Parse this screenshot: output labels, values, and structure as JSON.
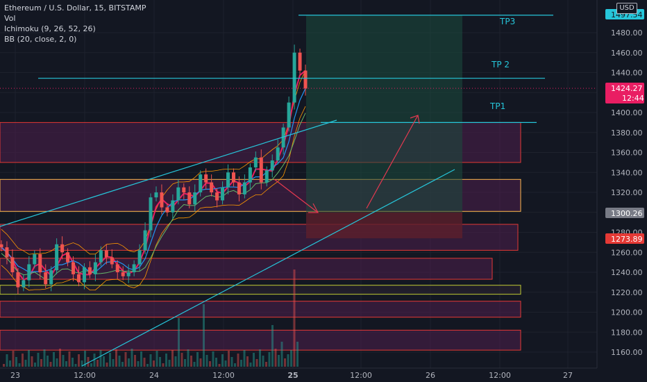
{
  "legend": {
    "symbol": "Ethereum / U.S. Dollar, 15, BITSTAMP",
    "vol": "Vol",
    "ichimoku": "Ichimoku (9, 26, 52, 26)",
    "bb": "BB (20, close, 2, 0)"
  },
  "currency_button": "USD",
  "colors": {
    "background": "#131722",
    "up": "#26a69a",
    "down": "#ef5350",
    "trendline": "#26c6da",
    "zone_fill": "#4a1e4a",
    "zone_border": "#e53935",
    "zone_border_alt": "#ffb74d",
    "zone_border_green": "#c0ca33",
    "target_fill": "#1b4d3e",
    "stop_fill": "#5c1f2c",
    "arrow": "#e53950",
    "grid": "#1e222d"
  },
  "chart_data": {
    "type": "candlestick",
    "y_axis": {
      "min": 1150,
      "max": 1500,
      "ticks": [
        "1480.00",
        "1460.00",
        "1440.00",
        "1420.00",
        "1400.00",
        "1380.00",
        "1360.00",
        "1340.00",
        "1320.00",
        "1300.00",
        "1280.00",
        "1260.00",
        "1240.00",
        "1220.00",
        "1200.00",
        "1180.00",
        "1160.00"
      ]
    },
    "x_axis": {
      "ticks": [
        "23",
        "12:00",
        "24",
        "12:00",
        "25",
        "12:00",
        "26",
        "12:00",
        "27"
      ]
    },
    "price_labels": {
      "top": "1497.54",
      "current": "1424.27",
      "current_time": "12:44",
      "mid": "1300.26",
      "low": "1273.89"
    },
    "annotations": {
      "tp3": "TP3",
      "tp2": "TP 2",
      "tp1": "TP1"
    },
    "levels": {
      "tp3": 1497.5,
      "tp2": 1435,
      "tp1": 1390,
      "current": 1424.27
    },
    "position": {
      "entry": 1300,
      "target": 1497.5,
      "stop": 1274
    },
    "zones": [
      {
        "top": 1390,
        "bottom": 1350,
        "border": "red"
      },
      {
        "top": 1333,
        "bottom": 1301,
        "border": "orange"
      },
      {
        "top": 1288,
        "bottom": 1262,
        "border": "red"
      },
      {
        "top": 1254,
        "bottom": 1233,
        "border": "red"
      },
      {
        "top": 1227,
        "bottom": 1218,
        "border": "green"
      },
      {
        "top": 1211,
        "bottom": 1195,
        "border": "red"
      },
      {
        "top": 1182,
        "bottom": 1162,
        "border": "red"
      }
    ],
    "price_path": [
      1265,
      1255,
      1240,
      1225,
      1232,
      1248,
      1258,
      1240,
      1228,
      1242,
      1268,
      1260,
      1250,
      1238,
      1230,
      1245,
      1238,
      1250,
      1262,
      1255,
      1248,
      1240,
      1236,
      1240,
      1248,
      1262,
      1282,
      1315,
      1320,
      1305,
      1300,
      1312,
      1325,
      1320,
      1308,
      1320,
      1338,
      1330,
      1320,
      1312,
      1325,
      1340,
      1330,
      1318,
      1330,
      1345,
      1355,
      1330,
      1342,
      1352,
      1365,
      1385,
      1410,
      1460,
      1442,
      1424
    ]
  }
}
